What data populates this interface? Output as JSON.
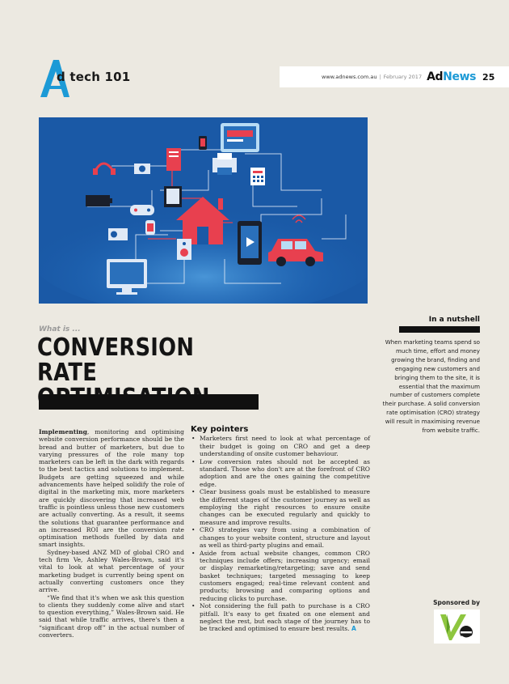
{
  "header": {
    "section_logo_letter": "A",
    "section_label": "d tech 101",
    "url": "www.adnews.com.au",
    "separator": "|",
    "date": "February 2017",
    "mag_ad": "Ad",
    "mag_news": "News",
    "page_number": "25"
  },
  "article": {
    "kicker": "What is ...",
    "title_line1": "CONVERSION RATE",
    "title_line2": "OPTIMISATION",
    "left_col": {
      "p1_lead": "Implementing",
      "p1_rest": ", monitoring and optimising website conversion performance should be the bread and butter of marketers, but due to varying pressures of the role many top marketers can be left in the dark with regards to the best tactics and solutions to implement. Budgets are getting squeezed and while advancements have helped solidify the role of digital in the marketing mix, more marketers are quickly discovering that increased web traffic is pointless unless those new customers are actually converting. As a result, it seems the solutions that guarantee performance and an increased ROI are the conversion rate optimisation methods fuelled by data and smart insights.",
      "p2": "Sydney-based ANZ MD of global CRO and tech firm Ve, Ashley Wales-Brown, said it's vital to look at what percentage of your marketing budget is currently being spent on actually converting customers once they arrive.",
      "p3": "“We find that it's when we ask this question to clients they suddenly come alive and start to question everything,” Wales-Brown said. He said that while traffic arrives, there's then a “significant drop off” in the actual number of converters."
    },
    "key_pointers": {
      "heading": "Key pointers",
      "items": [
        "Marketers first need to look at what percentage of their budget is going on CRO and get a deep understanding of onsite customer behaviour.",
        "Low conversion rates should not be accepted as standard. Those who don't are at the forefront of CRO adoption and are the ones gaining the competitive edge.",
        "Clear business goals must be established to measure the different stages of the customer journey as well as employing the right resources to ensure onsite changes can be executed regularly and quickly to measure and improve results.",
        "CRO strategies vary from using a combination of changes to your website content, structure and layout as well as third-party plugins and email.",
        "Aside from actual website changes, common CRO techniques include offers; increasing urgency; email or display remarketing/retargeting; save and send basket techniques; targeted messaging to keep customers engaged; real-time relevant content and products; browsing and comparing options and reducing clicks to purchase.",
        "Not considering the full path to purchase is a CRO pitfall. It's easy to get fixated on one element and neglect the rest, but each stage of the journey has to be tracked and optimised to ensure best results."
      ],
      "end_mark": "A"
    }
  },
  "sidebar": {
    "heading": "In a nutshell",
    "text": "When marketing teams spend so much time, effort and money growing the brand, finding and engaging new customers and bringing them to the site, it is essential that the maximum number of customers complete their purchase. A solid conversion rate optimisation (CRO) strategy will result in maximising revenue from website traffic.",
    "sponsored_label": "Sponsored by",
    "sponsor_logo_text": "Ve"
  },
  "colors": {
    "page_bg": "#ece9e1",
    "accent_blue": "#1c9ad6",
    "hero_bg": "#1a59a6",
    "accent_red": "#e8404f",
    "sponsor_green": "#8ec63f"
  }
}
